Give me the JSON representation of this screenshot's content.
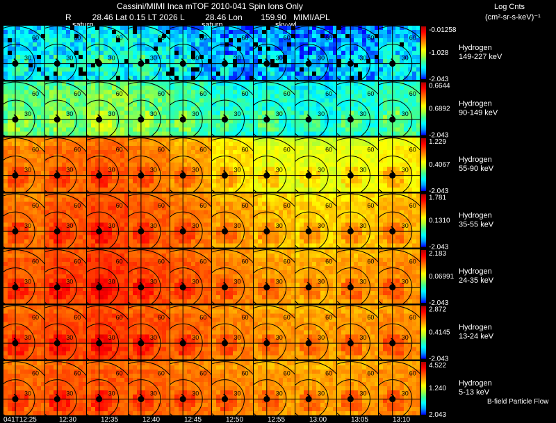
{
  "header": {
    "title": "Cassini/MIMI Inca mTOF  2010-041   Spin   Ions Only",
    "orbit_line": "R         28.46 Lat 0.15 LT 2026 L         28.46 Lon        159.90   MIMI/APL",
    "tag1": "saturn",
    "tag2": "saturn",
    "tag3": "sky-wl",
    "units_title": "Log Cnts",
    "units_sub": "(cm²-sr-s-keV)⁻¹"
  },
  "footer": {
    "flow_label": "B-field  Particle Flow"
  },
  "chart_data": {
    "type": "heatmap",
    "title": "Cassini/MIMI Inca mTOF 2010-041 Spin Ions Only",
    "times": [
      "041T12:25",
      "12:30",
      "12:35",
      "12:40",
      "12:45",
      "12:50",
      "12:55",
      "13:00",
      "13:05",
      "13:10"
    ],
    "ring_labels": [
      "30",
      "60"
    ],
    "colormap": [
      "#0000ff",
      "#00a0ff",
      "#00ffff",
      "#40ff90",
      "#b0ff30",
      "#ffff00",
      "#ffa000",
      "#ff5000",
      "#ff0000",
      "#b00000"
    ],
    "rows": [
      {
        "species": "Hydrogen",
        "energy": "149-227 keV",
        "cb_max": "-0.01258",
        "cb_mid": "-1.028",
        "cb_min": "-2.043",
        "frame_levels": [
          0.22,
          0.24,
          0.26,
          0.25,
          0.2,
          0.14,
          0.16,
          0.14,
          0.16,
          0.2
        ]
      },
      {
        "species": "Hydrogen",
        "energy": "90-149 keV",
        "cb_max": "0.6644",
        "cb_mid": "0.6892",
        "cb_min": "-2.043",
        "frame_levels": [
          0.38,
          0.4,
          0.44,
          0.4,
          0.35,
          0.3,
          0.3,
          0.27,
          0.3,
          0.34
        ]
      },
      {
        "species": "Hydrogen",
        "energy": "55-90 keV",
        "cb_max": "1.229",
        "cb_mid": "0.4067",
        "cb_min": "-2.043",
        "frame_levels": [
          0.74,
          0.77,
          0.79,
          0.75,
          0.7,
          0.62,
          0.56,
          0.54,
          0.56,
          0.6
        ]
      },
      {
        "species": "Hydrogen",
        "energy": "35-55 keV",
        "cb_max": "1.781",
        "cb_mid": "0.1310",
        "cb_min": "-2.043",
        "frame_levels": [
          0.76,
          0.8,
          0.83,
          0.79,
          0.75,
          0.7,
          0.66,
          0.63,
          0.65,
          0.68
        ]
      },
      {
        "species": "Hydrogen",
        "energy": "24-35 keV",
        "cb_max": "2.183",
        "cb_mid": "0.06991",
        "cb_min": "-2.043",
        "frame_levels": [
          0.8,
          0.83,
          0.86,
          0.82,
          0.79,
          0.74,
          0.7,
          0.68,
          0.7,
          0.72
        ]
      },
      {
        "species": "Hydrogen",
        "energy": "13-24 keV",
        "cb_max": "2.872",
        "cb_mid": "0.4145",
        "cb_min": "-2.043",
        "frame_levels": [
          0.8,
          0.82,
          0.84,
          0.81,
          0.78,
          0.74,
          0.71,
          0.7,
          0.71,
          0.73
        ]
      },
      {
        "species": "Hydrogen",
        "energy": "5-13 keV",
        "cb_max": "4.522",
        "cb_mid": "1.240",
        "cb_min": "2.043",
        "frame_levels": [
          0.78,
          0.8,
          0.8,
          0.78,
          0.76,
          0.73,
          0.71,
          0.7,
          0.71,
          0.72
        ]
      }
    ]
  }
}
